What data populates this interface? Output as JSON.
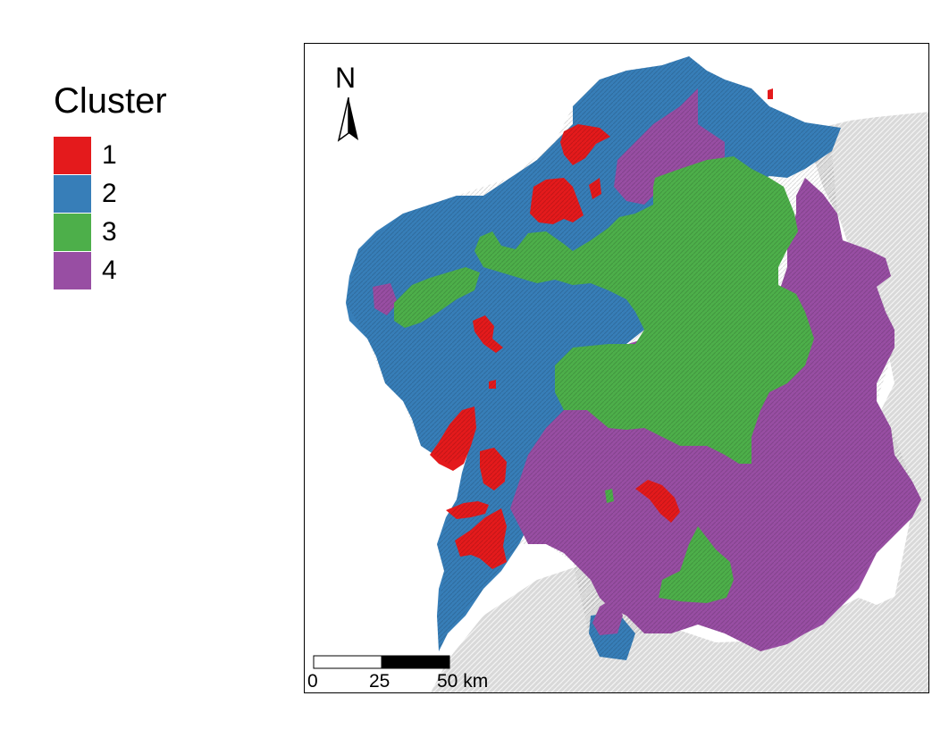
{
  "legend": {
    "title": "Cluster",
    "items": [
      {
        "label": "1",
        "color": "#e41a1c"
      },
      {
        "label": "2",
        "color": "#377eb8"
      },
      {
        "label": "3",
        "color": "#4daf4a"
      },
      {
        "label": "4",
        "color": "#984ea3"
      }
    ]
  },
  "map": {
    "north_label": "N",
    "background_relief_color": "#d9d9d9",
    "scale_bar": {
      "labels": [
        "0",
        "25",
        "50 km"
      ]
    }
  }
}
